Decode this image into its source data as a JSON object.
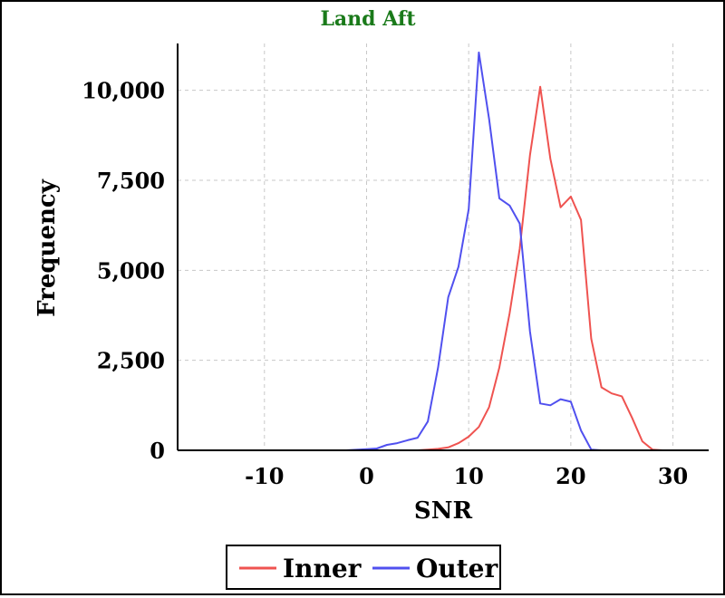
{
  "chart_data": {
    "type": "line",
    "title": "Land Aft",
    "xlabel": "SNR",
    "ylabel": "Frequency",
    "xlim": [
      -18.5,
      33.5
    ],
    "ylim": [
      0,
      11300
    ],
    "xticks": [
      -10,
      0,
      10,
      20,
      30
    ],
    "xtick_labels": [
      "-10",
      "0",
      "10",
      "20",
      "30"
    ],
    "yticks": [
      0,
      2500,
      5000,
      7500,
      10000
    ],
    "ytick_labels": [
      "0",
      "2,500",
      "5,000",
      "7,500",
      "10,000"
    ],
    "grid": true,
    "legend_position": "bottom-center",
    "series": [
      {
        "name": "Inner",
        "color": "#ef5350",
        "points": [
          [
            -17,
            0
          ],
          [
            -10,
            0
          ],
          [
            0,
            0
          ],
          [
            5,
            0
          ],
          [
            6,
            20
          ],
          [
            7,
            40
          ],
          [
            8,
            80
          ],
          [
            9,
            200
          ],
          [
            10,
            380
          ],
          [
            11,
            650
          ],
          [
            12,
            1200
          ],
          [
            13,
            2300
          ],
          [
            14,
            3800
          ],
          [
            15,
            5600
          ],
          [
            16,
            8200
          ],
          [
            17,
            10100
          ],
          [
            18,
            8100
          ],
          [
            19,
            6750
          ],
          [
            20,
            7050
          ],
          [
            21,
            6400
          ],
          [
            22,
            3100
          ],
          [
            23,
            1750
          ],
          [
            24,
            1580
          ],
          [
            25,
            1500
          ],
          [
            26,
            900
          ],
          [
            27,
            250
          ],
          [
            28,
            20
          ],
          [
            29,
            0
          ],
          [
            30,
            0
          ],
          [
            33,
            0
          ]
        ]
      },
      {
        "name": "Outer",
        "color": "#5050ef",
        "points": [
          [
            -17,
            0
          ],
          [
            -10,
            0
          ],
          [
            -2,
            0
          ],
          [
            0,
            30
          ],
          [
            1,
            50
          ],
          [
            2,
            150
          ],
          [
            3,
            200
          ],
          [
            4,
            280
          ],
          [
            5,
            350
          ],
          [
            6,
            800
          ],
          [
            7,
            2300
          ],
          [
            8,
            4250
          ],
          [
            9,
            5100
          ],
          [
            10,
            6700
          ],
          [
            11,
            11050
          ],
          [
            12,
            9200
          ],
          [
            13,
            7000
          ],
          [
            14,
            6800
          ],
          [
            15,
            6300
          ],
          [
            16,
            3300
          ],
          [
            17,
            1300
          ],
          [
            18,
            1250
          ],
          [
            19,
            1420
          ],
          [
            20,
            1350
          ],
          [
            21,
            550
          ],
          [
            22,
            20
          ],
          [
            23,
            0
          ],
          [
            33,
            0
          ]
        ]
      }
    ]
  }
}
